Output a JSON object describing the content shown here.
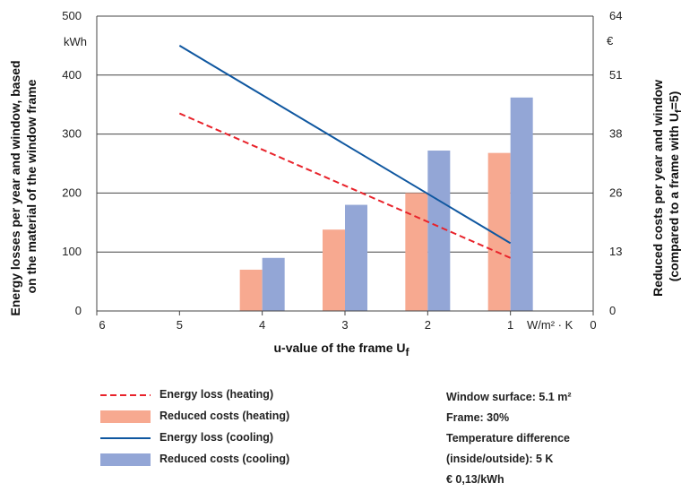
{
  "chart_data": {
    "type": "bar",
    "x_axis": {
      "label": "u-value of the frame U",
      "label_sub": "f",
      "ticks": [
        "6",
        "5",
        "4",
        "3",
        "2",
        "1",
        "0"
      ],
      "unit": "W/m² · K",
      "range": [
        6,
        0
      ]
    },
    "y_left": {
      "title_line1": "Energy losses per year and window, based",
      "title_line2": "on the material of the window frame",
      "unit": "kWh",
      "ticks": [
        "0",
        "100",
        "200",
        "300",
        "400",
        "500"
      ],
      "range": [
        0,
        500
      ]
    },
    "y_right": {
      "title_line1": "Reduced costs per year and window",
      "title_line2_pre": "(compared to a frame with U",
      "title_line2_sub": "f",
      "title_line2_post": "=5)",
      "unit": "€",
      "ticks": [
        "0",
        "13",
        "26",
        "38",
        "51",
        "64"
      ]
    },
    "grid": "horizontal",
    "series": [
      {
        "name": "Energy loss (heating)",
        "kind": "line",
        "style": "dashed",
        "color": "#e8232b",
        "points": [
          [
            5,
            335
          ],
          [
            1,
            90
          ]
        ]
      },
      {
        "name": "Reduced costs (heating)",
        "kind": "bar",
        "color": "#f7a990",
        "x": [
          4,
          3,
          2,
          1
        ],
        "values": [
          70,
          138,
          200,
          268
        ]
      },
      {
        "name": "Energy loss (cooling)",
        "kind": "line",
        "style": "solid",
        "color": "#0f57a0",
        "points": [
          [
            5,
            450
          ],
          [
            1,
            115
          ]
        ]
      },
      {
        "name": "Reduced costs (cooling)",
        "kind": "bar",
        "color": "#93a6d6",
        "x": [
          4,
          3,
          2,
          1
        ],
        "values": [
          90,
          180,
          272,
          362
        ]
      }
    ]
  },
  "notes": [
    "Window surface: 5.1 m²",
    "Frame: 30%",
    "Temperature difference",
    "(inside/outside):  5 K",
    "€ 0,13/kWh"
  ]
}
